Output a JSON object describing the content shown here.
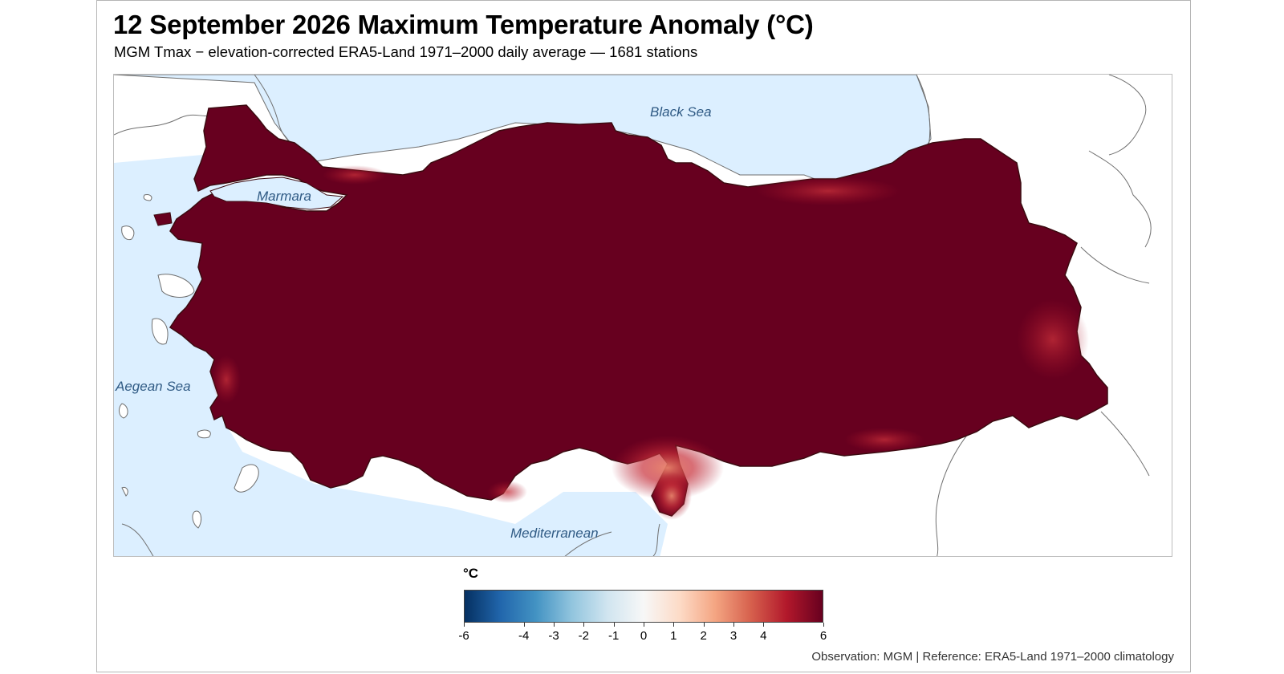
{
  "title": "12 September 2026 Maximum Temperature Anomaly (°C)",
  "subtitle": "MGM Tmax − elevation-corrected ERA5-Land 1971–2000 daily average — 1681 stations",
  "map": {
    "sea_labels": {
      "black_sea": "Black Sea",
      "marmara": "Marmara",
      "aegean": "Aegean Sea",
      "mediterranean": "Mediterranean"
    },
    "sea_color": "#dcefff",
    "dominant_anomaly_color": "#67001f",
    "hotspot_color": "#c8303a"
  },
  "legend": {
    "title": "°C",
    "ticks": [
      "-6",
      "-4",
      "-3",
      "-2",
      "-1",
      "0",
      "1",
      "2",
      "3",
      "4",
      "6"
    ],
    "colors": [
      "#053061",
      "#2166ac",
      "#4393c3",
      "#92c5de",
      "#d1e5f0",
      "#f7f7f7",
      "#fddbc7",
      "#f4a582",
      "#d6604d",
      "#b2182b",
      "#67001f"
    ]
  },
  "caption": "Observation: MGM   |   Reference: ERA5-Land 1971–2000 climatology"
}
